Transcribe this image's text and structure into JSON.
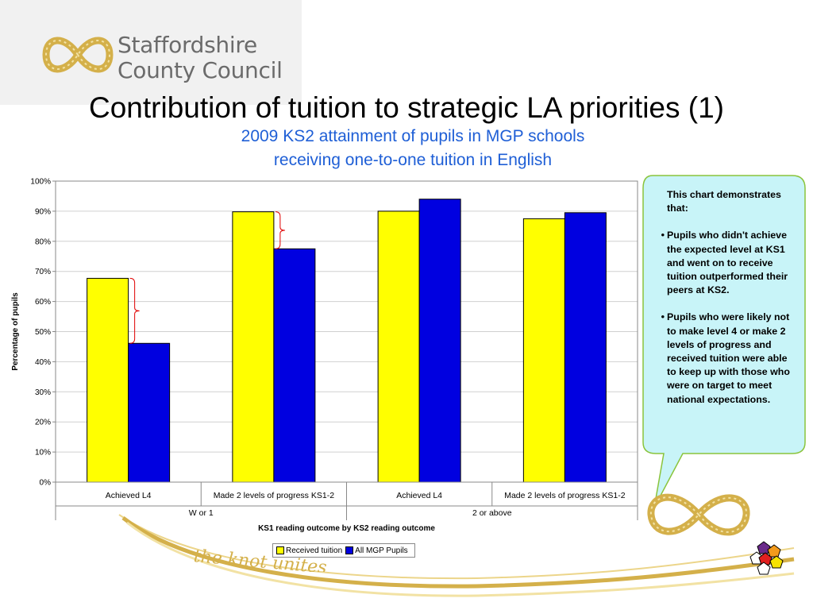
{
  "logo": {
    "line1": "Staffordshire",
    "line2": "County Council"
  },
  "slide_title": "Contribution of tuition to strategic LA priorities (1)",
  "subtitle": {
    "line1": "2009 KS2 attainment of pupils in MGP schools",
    "line2": "receiving one-to-one tuition in English"
  },
  "chart_data": {
    "type": "bar",
    "categories": [
      "Achieved L4",
      "Made 2 levels of progress KS1-2",
      "Achieved L4",
      "Made 2 levels of progress KS1-2"
    ],
    "groups": [
      {
        "label": "W or 1",
        "categories": [
          0,
          1
        ]
      },
      {
        "label": "2 or above",
        "categories": [
          2,
          3
        ]
      }
    ],
    "series": [
      {
        "name": "Received tuition",
        "color": "#ffff00",
        "values": [
          67.7,
          89.8,
          90.0,
          87.5
        ]
      },
      {
        "name": "All MGP Pupils",
        "color": "#0000e0",
        "values": [
          46.1,
          77.5,
          94.0,
          89.5
        ]
      }
    ],
    "ylim": [
      0,
      100
    ],
    "yticks": [
      "0%",
      "10%",
      "20%",
      "30%",
      "40%",
      "50%",
      "60%",
      "70%",
      "80%",
      "90%",
      "100%"
    ],
    "ylabel": "Percentage of pupils",
    "xlabel": "KS1 reading outcome by KS2 reading outcome",
    "legend_position": "bottom",
    "grid": true
  },
  "callout": {
    "intro": "This chart demonstrates that:",
    "bullets": [
      "Pupils who didn't achieve the expected level at KS1 and went on to receive tuition outperformed their peers at KS2.",
      "Pupils who were likely not to make level 4 or make 2 levels of progress and received tuition were able to keep up with those who were on target to meet national expectations."
    ],
    "bullet_symbol": "•"
  },
  "footer": {
    "tagline": "the knot unites"
  },
  "colors": {
    "gold": "#d4b04a",
    "subtitle_blue": "#1f5fd6",
    "callout_fill": "#c8f4f8",
    "callout_border": "#8ac43c",
    "brace": "#e00000"
  }
}
